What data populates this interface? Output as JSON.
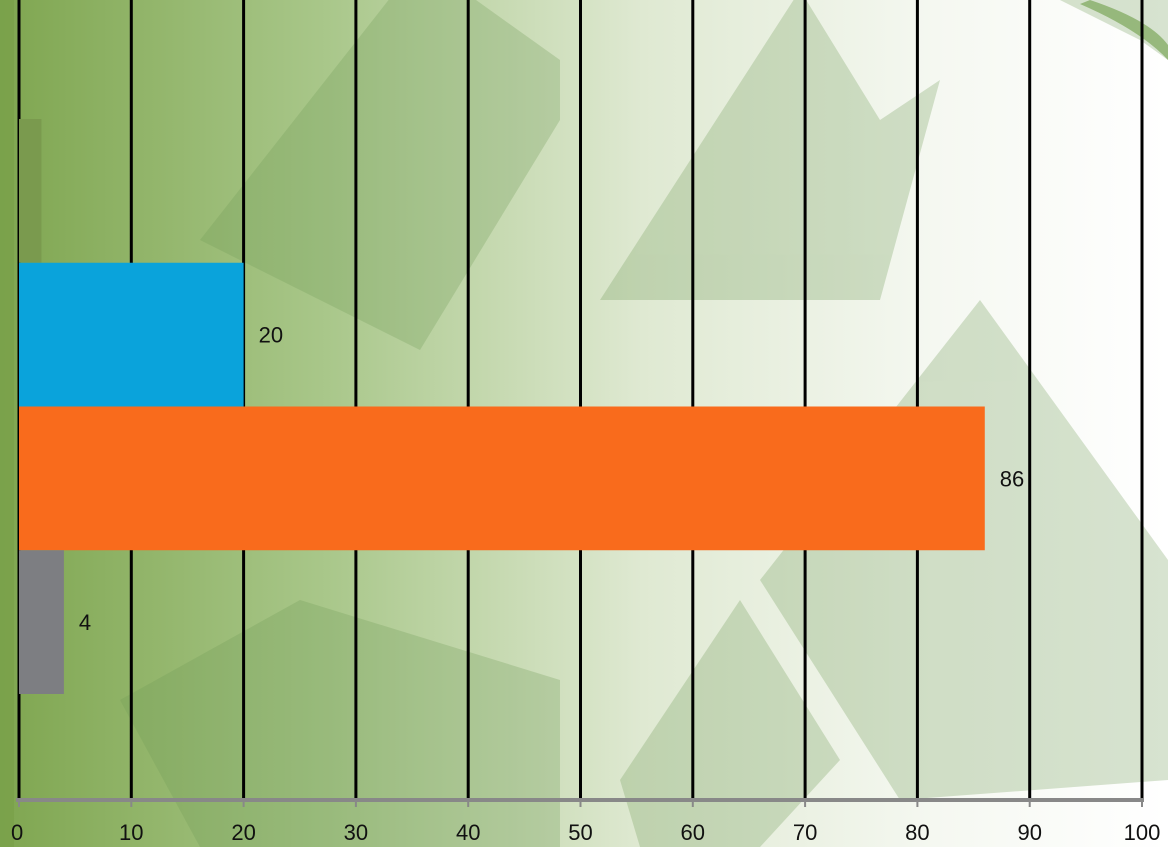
{
  "chart_data": {
    "type": "bar",
    "orientation": "horizontal",
    "title": "",
    "xlabel": "",
    "ylabel": "",
    "xlim": [
      0,
      100
    ],
    "x_ticks": [
      0,
      10,
      20,
      30,
      40,
      50,
      60,
      70,
      80,
      90,
      100
    ],
    "grid": true,
    "legend": "none",
    "bars": [
      {
        "value": 2,
        "label": "",
        "color": "#7a9a4e"
      },
      {
        "value": 20,
        "label": "20",
        "color": "#0aa3db"
      },
      {
        "value": 86,
        "label": "86",
        "color": "#f96b1c"
      },
      {
        "value": 4,
        "label": "4",
        "color": "#7d7e82"
      }
    ],
    "gridline_color": "#000000",
    "axis_color": "#888888"
  }
}
